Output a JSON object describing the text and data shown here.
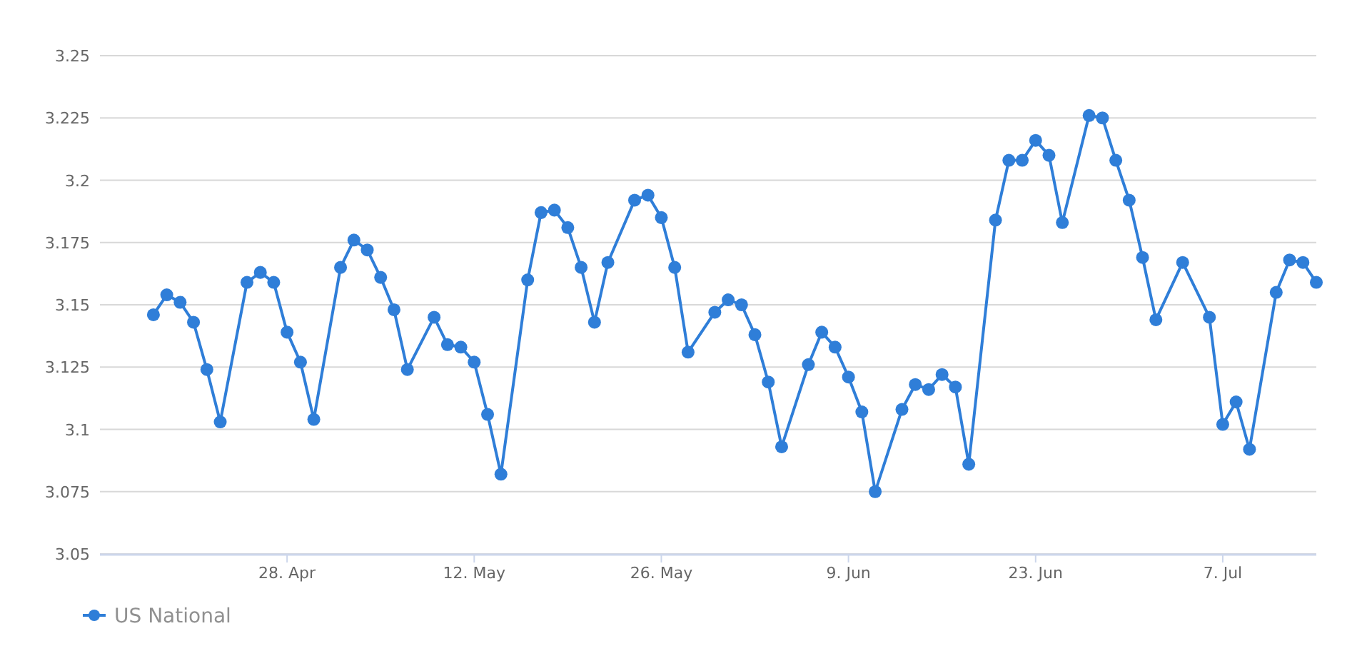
{
  "chart_data": {
    "type": "line",
    "x": [
      "--04-18",
      "--04-19",
      "--04-20",
      "--04-21",
      "--04-22",
      "--04-23",
      "--04-25",
      "--04-26",
      "--04-27",
      "--04-28",
      "--04-29",
      "--04-30",
      "--05-02",
      "--05-03",
      "--05-04",
      "--05-05",
      "--05-06",
      "--05-07",
      "--05-09",
      "--05-10",
      "--05-11",
      "--05-12",
      "--05-13",
      "--05-14",
      "--05-16",
      "--05-17",
      "--05-18",
      "--05-19",
      "--05-20",
      "--05-21",
      "--05-22",
      "--05-24",
      "--05-25",
      "--05-26",
      "--05-27",
      "--05-28",
      "--05-30",
      "--05-31",
      "--06-01",
      "--06-02",
      "--06-03",
      "--06-04",
      "--06-06",
      "--06-07",
      "--06-08",
      "--06-09",
      "--06-10",
      "--06-11",
      "--06-13",
      "--06-14",
      "--06-15",
      "--06-16",
      "--06-17",
      "--06-18",
      "--06-20",
      "--06-21",
      "--06-22",
      "--06-23",
      "--06-24",
      "--06-25",
      "--06-27",
      "--06-28",
      "--06-29",
      "--06-30",
      "--07-01",
      "--07-02",
      "--07-04",
      "--07-06",
      "--07-07",
      "--07-08",
      "--07-09",
      "--07-11",
      "--07-12",
      "--07-13",
      "--07-14"
    ],
    "series": [
      {
        "name": "US National",
        "color": "#2f7ed8",
        "values": [
          3.146,
          3.154,
          3.151,
          3.143,
          3.124,
          3.103,
          3.159,
          3.163,
          3.159,
          3.139,
          3.127,
          3.104,
          3.165,
          3.176,
          3.172,
          3.161,
          3.148,
          3.124,
          3.145,
          3.134,
          3.133,
          3.127,
          3.106,
          3.082,
          3.16,
          3.187,
          3.188,
          3.181,
          3.165,
          3.143,
          3.167,
          3.192,
          3.194,
          3.185,
          3.165,
          3.131,
          3.147,
          3.152,
          3.15,
          3.138,
          3.119,
          3.093,
          3.126,
          3.139,
          3.133,
          3.121,
          3.107,
          3.075,
          3.108,
          3.118,
          3.116,
          3.122,
          3.117,
          3.086,
          3.184,
          3.208,
          3.208,
          3.216,
          3.21,
          3.183,
          3.226,
          3.225,
          3.208,
          3.192,
          3.169,
          3.144,
          3.167,
          3.145,
          3.102,
          3.111,
          3.092,
          3.155,
          3.168,
          3.167,
          3.159
        ]
      }
    ],
    "xlim": [
      "--04-14",
      "--07-14"
    ],
    "xticks": [
      {
        "value": "--04-28",
        "label": "28. Apr"
      },
      {
        "value": "--05-12",
        "label": "12. May"
      },
      {
        "value": "--05-26",
        "label": "26. May"
      },
      {
        "value": "--06-09",
        "label": "9. Jun"
      },
      {
        "value": "--06-23",
        "label": "23. Jun"
      },
      {
        "value": "--07-07",
        "label": "7. Jul"
      }
    ],
    "ylim": [
      3.05,
      3.25
    ],
    "yticks": [
      3.05,
      3.075,
      3.1,
      3.125,
      3.15,
      3.175,
      3.2,
      3.225,
      3.25
    ],
    "grid": "y",
    "legend": "bottom left",
    "marker": "circle"
  }
}
